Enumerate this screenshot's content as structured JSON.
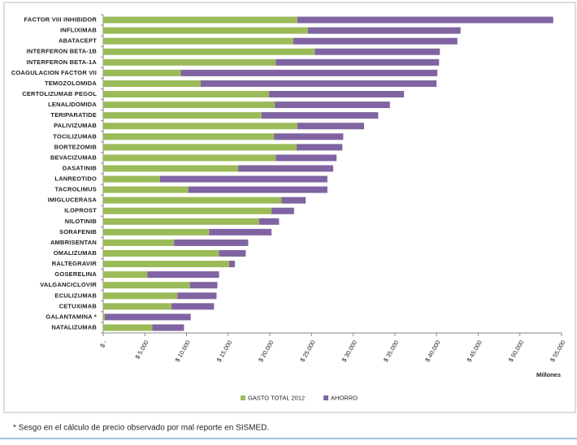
{
  "chart_data": {
    "type": "stacked-bar-horizontal",
    "categories": [
      "FACTOR VIII INHIBIDOR",
      "INFLIXIMAB",
      "ABATACEPT",
      "INTERFERON BETA-1B",
      "INTERFERON BETA-1A",
      "COAGULACION FACTOR VII",
      "TEMOZOLOMIDA",
      "CERTOLIZUMAB PEGOL",
      "LENALIDOMIDA",
      "TERIPARATIDE",
      "PALIVIZUMAB",
      "TOCILIZUMAB",
      "BORTEZOMIB",
      "BEVACIZUMAB",
      "DASATINIB",
      "LANREOTIDO",
      "TACROLIMUS",
      "IMIGLUCERASA",
      "ILOPROST",
      "NILOTINIB",
      "SORAFENIB",
      "AMBRISENTAN",
      "OMALIZUMAB",
      "RALTEGRAVIR",
      "GOSERELINA",
      "VALGANCICLOVIR",
      "ECULIZUMAB",
      "CETUXIMAB",
      "GALANTAMINA *",
      "NATALIZUMAB"
    ],
    "series": [
      {
        "name": "GASTO TOTAL 2012",
        "color": "#9bbb59",
        "values": [
          23300,
          24560,
          22800,
          25400,
          20700,
          9300,
          11700,
          19900,
          20600,
          19000,
          23300,
          20500,
          23200,
          20700,
          16200,
          6800,
          10200,
          21400,
          20200,
          18700,
          12700,
          8500,
          13900,
          15100,
          5300,
          10400,
          8900,
          8200,
          200,
          5900
        ]
      },
      {
        "name": "AHORRO",
        "color": "#8064a2",
        "values": [
          30700,
          18320,
          19700,
          15000,
          19600,
          30800,
          28300,
          16200,
          13800,
          14000,
          8000,
          8300,
          5500,
          7300,
          11400,
          20100,
          16700,
          2900,
          2700,
          2400,
          7500,
          8900,
          3200,
          700,
          8600,
          3300,
          4700,
          5100,
          10300,
          3800
        ]
      }
    ],
    "xlim": [
      0,
      55000
    ],
    "xticks": [
      {
        "value": 0,
        "label": "$ -"
      },
      {
        "value": 5000,
        "label": "$ 5.000"
      },
      {
        "value": 10000,
        "label": "$ 10.000"
      },
      {
        "value": 15000,
        "label": "$ 15.000"
      },
      {
        "value": 20000,
        "label": "$ 20.000"
      },
      {
        "value": 25000,
        "label": "$ 25.000"
      },
      {
        "value": 30000,
        "label": "$ 30.000"
      },
      {
        "value": 35000,
        "label": "$ 35.000"
      },
      {
        "value": 40000,
        "label": "$ 40.000"
      },
      {
        "value": 45000,
        "label": "$ 45.000"
      },
      {
        "value": 50000,
        "label": "$ 50.000"
      },
      {
        "value": 55000,
        "label": "$ 55.000"
      }
    ],
    "xlabel": "Millones",
    "grid": false,
    "legend": "bottom",
    "footnote": "* Sesgo en el cálculo de precio observado por mal reporte en SISMED."
  }
}
